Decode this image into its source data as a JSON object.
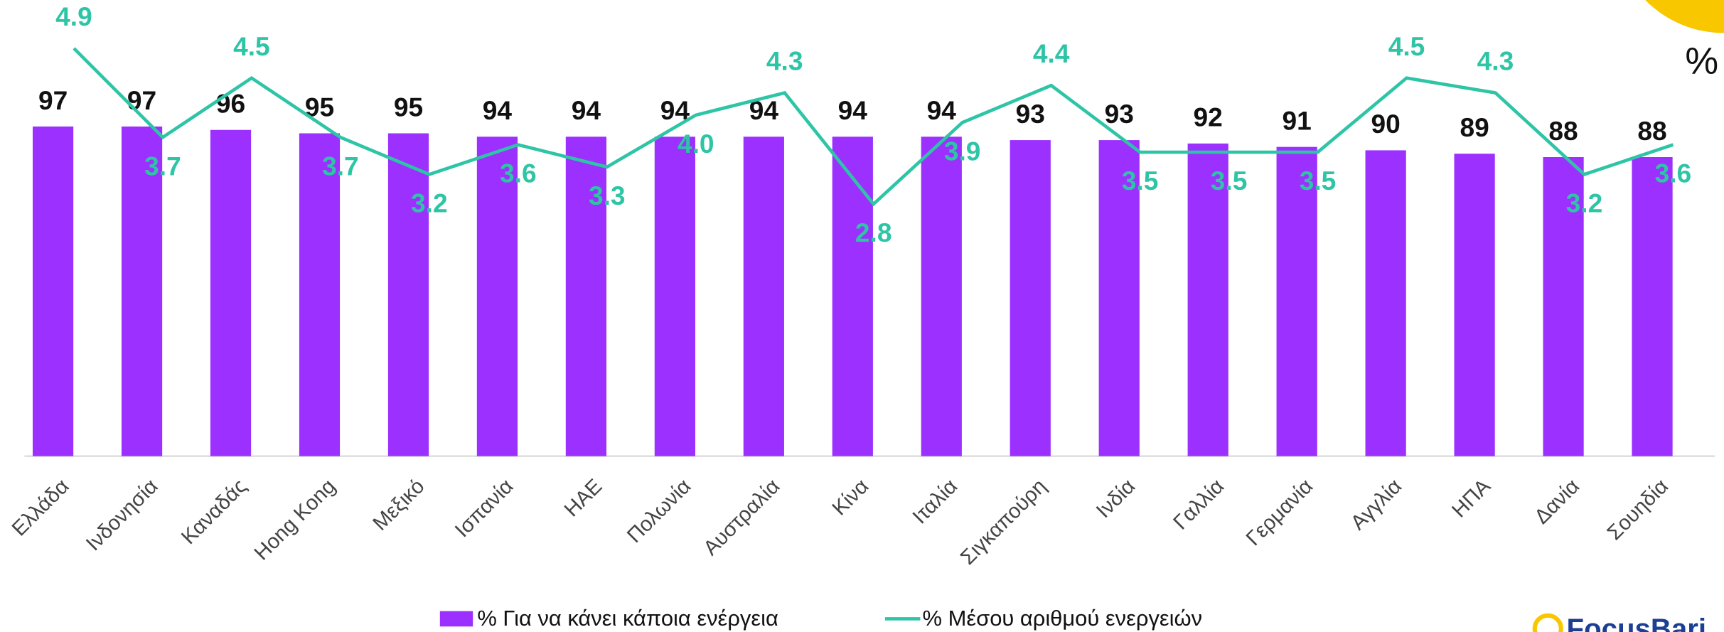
{
  "chart_data": {
    "type": "bar_line",
    "unit_label": "%",
    "categories": [
      "Ελλάδα",
      "Ινδονησία",
      "Καναδάς",
      "Hong Kong",
      "Μεξικό",
      "Ισπανία",
      "ΗΑΕ",
      "Πολωνία",
      "Αυστραλία",
      "Κίνα",
      "Ιταλία",
      "Σιγκαπούρη",
      "Ινδία",
      "Γαλλία",
      "Γερμανία",
      "Αγγλία",
      "ΗΠΑ",
      "Δανία",
      "Σουηδία"
    ],
    "series": [
      {
        "name": "% Για να κάνει κάποια ενέργεια",
        "type": "bar",
        "color": "#9b30ff",
        "values": [
          97,
          97,
          96,
          95,
          95,
          94,
          94,
          94,
          94,
          94,
          94,
          93,
          93,
          92,
          91,
          90,
          89,
          88,
          88
        ]
      },
      {
        "name": "% Μέσου αριθμού ενεργειών",
        "type": "line",
        "axis": "y2",
        "color": "#2ec4a6",
        "values": [
          4.9,
          3.7,
          4.5,
          3.7,
          3.2,
          3.6,
          3.3,
          4.0,
          4.3,
          2.8,
          3.9,
          4.4,
          3.5,
          3.5,
          3.5,
          4.5,
          4.3,
          3.2,
          3.6
        ],
        "value_labels": [
          "4.9",
          "3.7",
          "4.5",
          "3.7",
          "3.2",
          "3.6",
          "3.3",
          "4.0",
          "4.3",
          "2.8",
          "3.9",
          "4.4",
          "3.5",
          "3.5",
          "3.5",
          "4.5",
          "4.3",
          "3.2",
          "3.6"
        ]
      }
    ],
    "ylim": [
      0,
      120
    ],
    "y2lim": [
      -0.6,
      4.9
    ],
    "logo": "FocusBari"
  }
}
